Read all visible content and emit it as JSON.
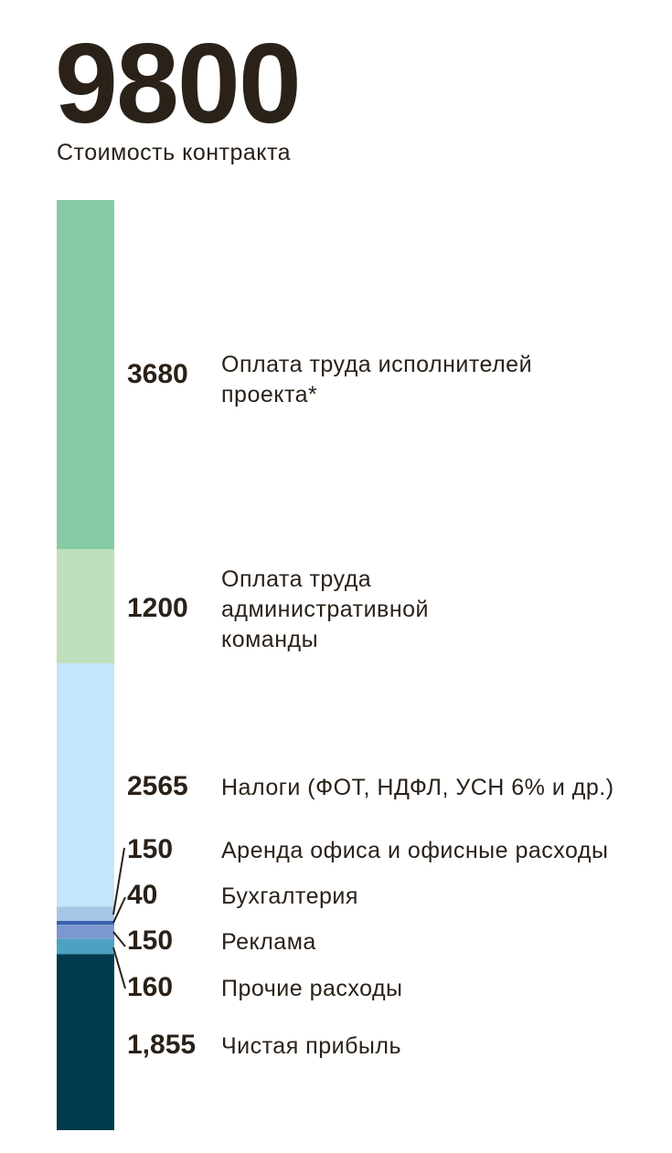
{
  "chart_data": {
    "type": "bar",
    "stacked": true,
    "title": "9800",
    "subtitle": "Стоимость контракта",
    "total": 9800,
    "segments": [
      {
        "value": 3680,
        "label_value": "3680",
        "label": [
          "Оплата труда исполнителей",
          "проекта*"
        ],
        "color": "#86cba5"
      },
      {
        "value": 1200,
        "label_value": "1200",
        "label": [
          "Оплата труда",
          "административной",
          "команды"
        ],
        "color": "#bddfb9"
      },
      {
        "value": 2565,
        "label_value": "2565",
        "label": [
          "Налоги (ФОТ, НДФЛ, УСН 6% и др.)"
        ],
        "color": "#c4e6fa"
      },
      {
        "value": 150,
        "label_value": "150",
        "label": [
          "Аренда офиса и офисные расходы"
        ],
        "color": "#a8c7e8"
      },
      {
        "value": 40,
        "label_value": "40",
        "label": [
          "Бухгалтерия"
        ],
        "color": "#3a62ad"
      },
      {
        "value": 150,
        "label_value": "150",
        "label": [
          "Реклама"
        ],
        "color": "#7b98d0"
      },
      {
        "value": 160,
        "label_value": "160",
        "label": [
          "Прочие расходы"
        ],
        "color": "#4ba3c1"
      },
      {
        "value": 1855,
        "label_value": "1,855",
        "label": [
          "Чистая прибыль"
        ],
        "color": "#003a4d"
      }
    ]
  }
}
